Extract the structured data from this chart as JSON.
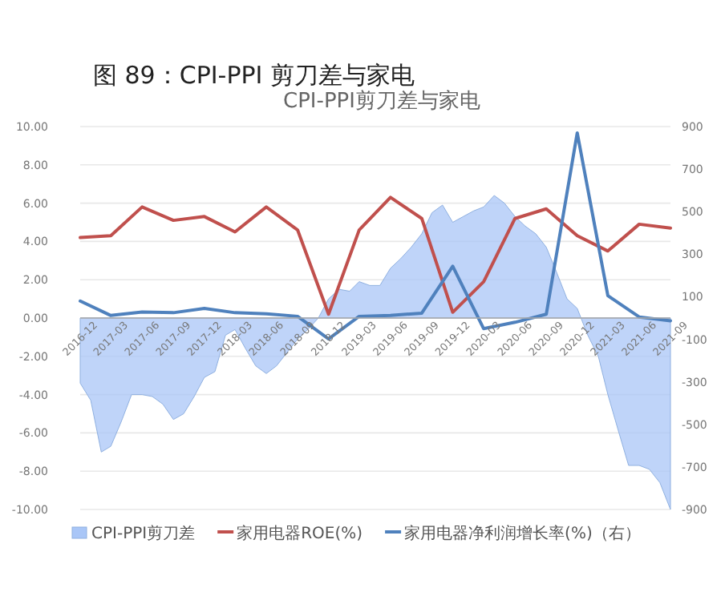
{
  "chart_data": {
    "type": "line",
    "title": "图 89：CPI-PPI 剪刀差与家电",
    "subtitle": "CPI-PPI剪刀差与家电",
    "x": [
      "2016-12",
      "2017-03",
      "2017-06",
      "2017-09",
      "2017-12",
      "2018-03",
      "2018-06",
      "2018-09",
      "2018-12",
      "2019-03",
      "2019-06",
      "2019-09",
      "2019-12",
      "2020-03",
      "2020-06",
      "2020-09",
      "2020-12",
      "2021-03",
      "2021-06",
      "2021-09"
    ],
    "xlim": [
      "2016-12",
      "2021-09"
    ],
    "xticks": [
      {
        "value": "2016-12",
        "label": "2016-12"
      },
      {
        "value": "2017-03",
        "label": "2017-03"
      },
      {
        "value": "2017-06",
        "label": "2017-06"
      },
      {
        "value": "2017-09",
        "label": "2017-09"
      },
      {
        "value": "2017-12",
        "label": "2017-12"
      },
      {
        "value": "2018-03",
        "label": "2018-03"
      },
      {
        "value": "2018-06",
        "label": "2018-06"
      },
      {
        "value": "2018-09",
        "label": "2018-09"
      },
      {
        "value": "2018-12",
        "label": "2018-12"
      },
      {
        "value": "2019-03",
        "label": "2019-03"
      },
      {
        "value": "2019-06",
        "label": "2019-06"
      },
      {
        "value": "2019-09",
        "label": "2019-09"
      },
      {
        "value": "2019-12",
        "label": "2019-12"
      },
      {
        "value": "2020-03",
        "label": "2020-03"
      },
      {
        "value": "2020-06",
        "label": "2020-06"
      },
      {
        "value": "2020-09",
        "label": "2020-09"
      },
      {
        "value": "2020-12",
        "label": "2020-12"
      },
      {
        "value": "2021-03",
        "label": "2021-03"
      },
      {
        "value": "2021-06",
        "label": "2021-06"
      },
      {
        "value": "2021-09",
        "label": "2021-09"
      }
    ],
    "series": [
      {
        "name": "CPI-PPI剪刀差",
        "type": "area",
        "color": "#a9c6f7",
        "x": [
          "2016-12",
          "2017-01",
          "2017-02",
          "2017-03",
          "2017-04",
          "2017-05",
          "2017-06",
          "2017-07",
          "2017-08",
          "2017-09",
          "2017-10",
          "2017-11",
          "2017-12",
          "2018-01",
          "2018-02",
          "2018-03",
          "2018-04",
          "2018-05",
          "2018-06",
          "2018-07",
          "2018-08",
          "2018-09",
          "2018-10",
          "2018-11",
          "2018-12",
          "2019-01",
          "2019-02",
          "2019-03",
          "2019-04",
          "2019-05",
          "2019-06",
          "2019-07",
          "2019-08",
          "2019-09",
          "2019-10",
          "2019-11",
          "2019-12",
          "2020-01",
          "2020-02",
          "2020-03",
          "2020-04",
          "2020-05",
          "2020-06",
          "2020-07",
          "2020-08",
          "2020-09",
          "2020-10",
          "2020-11",
          "2020-12",
          "2021-01",
          "2021-02",
          "2021-03",
          "2021-04",
          "2021-05",
          "2021-06",
          "2021-07",
          "2021-08",
          "2021-09"
        ],
        "values": [
          -3.4,
          -4.3,
          -7.0,
          -6.7,
          -5.4,
          -4.0,
          -4.0,
          -4.1,
          -4.5,
          -5.3,
          -5.0,
          -4.1,
          -3.1,
          -2.8,
          -0.9,
          -0.6,
          -1.6,
          -2.5,
          -2.9,
          -2.5,
          -1.8,
          -1.1,
          -0.6,
          0.0,
          1.0,
          1.5,
          1.4,
          1.9,
          1.7,
          1.7,
          2.6,
          3.1,
          3.7,
          4.4,
          5.5,
          5.9,
          5.0,
          5.3,
          5.6,
          5.8,
          6.4,
          6.0,
          5.3,
          4.8,
          4.4,
          3.7,
          2.4,
          1.0,
          0.5,
          -0.9,
          -2.0,
          -4.0,
          -5.9,
          -7.7,
          -7.7,
          -7.9,
          -8.6,
          -10.0
        ]
      },
      {
        "name": "家用电器ROE(%)",
        "color": "#c0504d",
        "values": [
          4.2,
          4.3,
          5.8,
          5.1,
          5.3,
          4.5,
          5.8,
          4.6,
          0.2,
          4.6,
          6.3,
          5.2,
          0.3,
          1.9,
          5.2,
          5.7,
          4.3,
          3.5,
          4.9,
          4.7
        ]
      },
      {
        "name": "家用电器净利润增长率(%)（右）",
        "axis": "y2",
        "color": "#4f81bd",
        "values": [
          80,
          12,
          28,
          25,
          45,
          25,
          20,
          8,
          -98,
          8,
          12,
          23,
          243,
          -50,
          -20,
          18,
          870,
          105,
          5,
          -13
        ]
      }
    ],
    "ylim": [
      -10,
      10
    ],
    "yticks": [
      {
        "value": -10,
        "label": "-10.00"
      },
      {
        "value": -8,
        "label": "-8.00"
      },
      {
        "value": -6,
        "label": "-6.00"
      },
      {
        "value": -4,
        "label": "-4.00"
      },
      {
        "value": -2,
        "label": "-2.00"
      },
      {
        "value": 0,
        "label": "0.00"
      },
      {
        "value": 2,
        "label": "2.00"
      },
      {
        "value": 4,
        "label": "4.00"
      },
      {
        "value": 6,
        "label": "6.00"
      },
      {
        "value": 8,
        "label": "8.00"
      },
      {
        "value": 10,
        "label": "10.00"
      }
    ],
    "y2lim": [
      -900,
      900
    ],
    "y2ticks": [
      -900,
      -700,
      -500,
      -300,
      -100,
      100,
      300,
      500,
      700,
      900
    ],
    "grid": "y",
    "legend": "bottom",
    "marker": "none",
    "line_style": "solid"
  }
}
